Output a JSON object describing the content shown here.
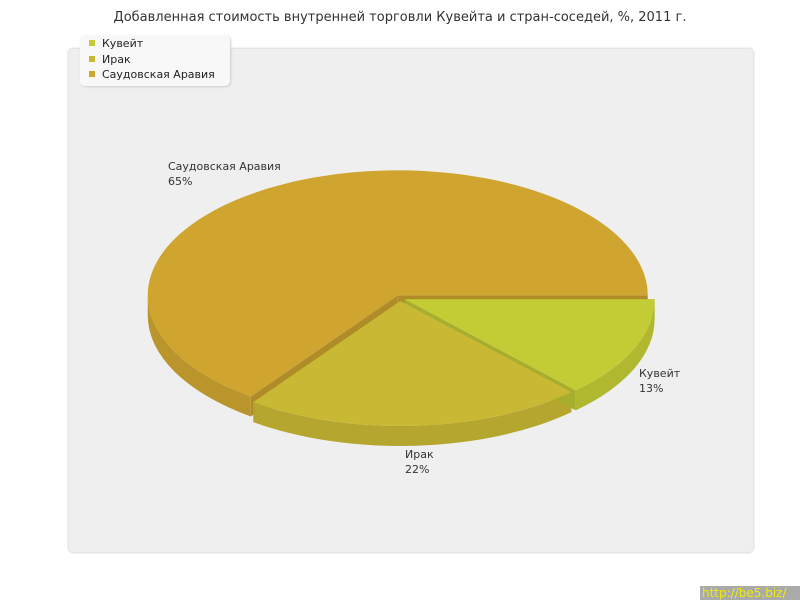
{
  "title": "Добавленная стоимость внутренней торговли Кувейта и стран-соседей, %, 2011 г.",
  "watermark": "http://be5.biz/",
  "chart_data": {
    "type": "pie",
    "title": "Добавленная стоимость внутренней торговли Кувейта и стран-соседей, %, 2011 г.",
    "legend_position": "top-left",
    "three_d": true,
    "categories": [
      "Кувейт",
      "Ирак",
      "Саудовская Аравия"
    ],
    "values": [
      13,
      22,
      65
    ],
    "labels": [
      "13%",
      "22%",
      "65%"
    ],
    "colors": [
      "#c4cc35",
      "#c9b834",
      "#cfa530"
    ]
  }
}
